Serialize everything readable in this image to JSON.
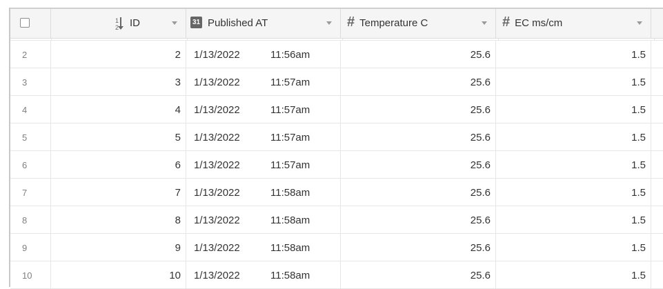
{
  "columns": {
    "select": {
      "checkbox_checked": false
    },
    "id": {
      "label": "ID",
      "icon": "sort-numeric-icon"
    },
    "published": {
      "label": "Published AT",
      "icon": "date-field-icon",
      "icon_glyph": "31"
    },
    "temperature": {
      "label": "Temperature C",
      "icon": "number-hash-icon",
      "icon_glyph": "#"
    },
    "ec": {
      "label": "EC ms/cm",
      "icon": "number-hash-icon",
      "icon_glyph": "#"
    }
  },
  "rows": [
    {
      "row_number": "2",
      "id": "2",
      "date": "1/13/2022",
      "time": "11:56am",
      "temperature": "25.6",
      "ec": "1.5"
    },
    {
      "row_number": "3",
      "id": "3",
      "date": "1/13/2022",
      "time": "11:57am",
      "temperature": "25.6",
      "ec": "1.5"
    },
    {
      "row_number": "4",
      "id": "4",
      "date": "1/13/2022",
      "time": "11:57am",
      "temperature": "25.6",
      "ec": "1.5"
    },
    {
      "row_number": "5",
      "id": "5",
      "date": "1/13/2022",
      "time": "11:57am",
      "temperature": "25.6",
      "ec": "1.5"
    },
    {
      "row_number": "6",
      "id": "6",
      "date": "1/13/2022",
      "time": "11:57am",
      "temperature": "25.6",
      "ec": "1.5"
    },
    {
      "row_number": "7",
      "id": "7",
      "date": "1/13/2022",
      "time": "11:58am",
      "temperature": "25.6",
      "ec": "1.5"
    },
    {
      "row_number": "8",
      "id": "8",
      "date": "1/13/2022",
      "time": "11:58am",
      "temperature": "25.6",
      "ec": "1.5"
    },
    {
      "row_number": "9",
      "id": "9",
      "date": "1/13/2022",
      "time": "11:58am",
      "temperature": "25.6",
      "ec": "1.5"
    },
    {
      "row_number": "10",
      "id": "10",
      "date": "1/13/2022",
      "time": "11:58am",
      "temperature": "25.6",
      "ec": "1.5"
    }
  ]
}
